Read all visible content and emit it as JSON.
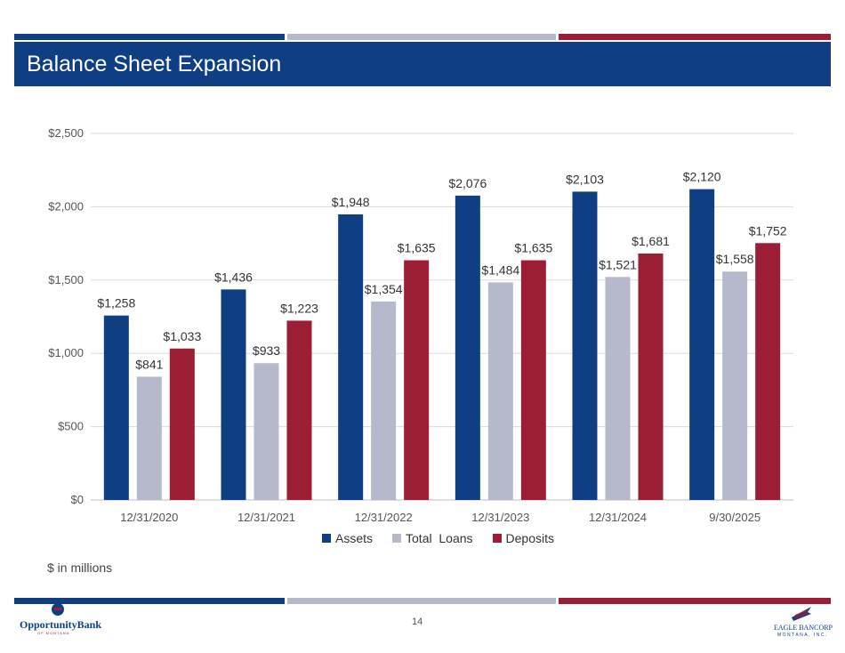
{
  "slide": {
    "title": "Balance Sheet Expansion",
    "units_note": "$ in millions",
    "page_number": "14",
    "colors": {
      "navy": "#0f3f82",
      "gray": "#b6b9cc",
      "maroon": "#9b1e35"
    }
  },
  "logos": {
    "left": {
      "name": "OpportunityBank",
      "sub": "OF MONTANA"
    },
    "right": {
      "name": "EAGLE BANCORP",
      "sub": "MONTANA, INC."
    }
  },
  "chart_data": {
    "type": "bar",
    "categories": [
      "12/31/2020",
      "12/31/2021",
      "12/31/2022",
      "12/31/2023",
      "12/31/2024",
      "9/30/2025"
    ],
    "series": [
      {
        "name": "Assets",
        "color": "#0f3f82",
        "values": [
          1258,
          1436,
          1948,
          2076,
          2103,
          2120
        ],
        "labels": [
          "$1,258",
          "$1,436",
          "$1,948",
          "$2,076",
          "$2,103",
          "$2,120"
        ]
      },
      {
        "name": "Total  Loans",
        "color": "#b6b9cc",
        "values": [
          841,
          933,
          1354,
          1484,
          1521,
          1558
        ],
        "labels": [
          "$841",
          "$933",
          "$1,354",
          "$1,484",
          "$1,521",
          "$1,558"
        ]
      },
      {
        "name": "Deposits",
        "color": "#9b1e35",
        "values": [
          1033,
          1223,
          1635,
          1635,
          1681,
          1752
        ],
        "labels": [
          "$1,033",
          "$1,223",
          "$1,635",
          "$1,635",
          "$1,681",
          "$1,752"
        ]
      }
    ],
    "y_ticks": [
      0,
      500,
      1000,
      1500,
      2000,
      2500
    ],
    "y_tick_labels": [
      "$0",
      "$500",
      "$1,000",
      "$1,500",
      "$2,000",
      "$2,500"
    ],
    "ylim": [
      0,
      2500
    ],
    "grid": true,
    "legend_position": "bottom"
  }
}
